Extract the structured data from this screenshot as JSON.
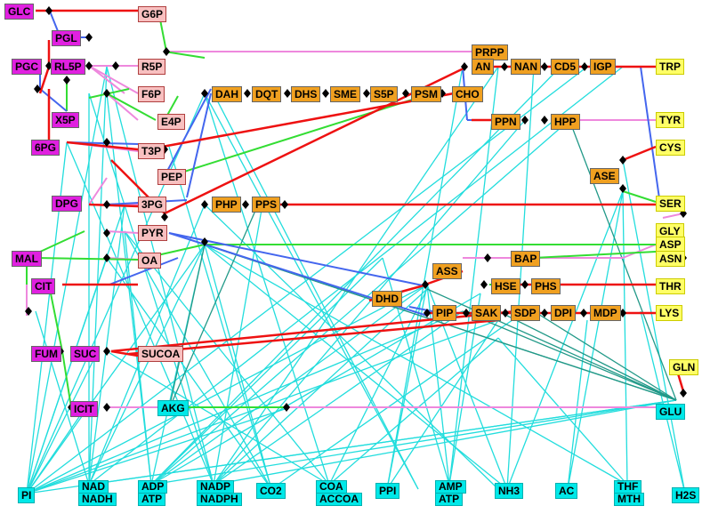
{
  "colors": {
    "magenta": "#e020e0",
    "pink_node": "#f8c0c0",
    "orange": "#f0a020",
    "yellow": "#ffff66",
    "cyan": "#00e8e8",
    "edge_red": "#ee1111",
    "edge_blue": "#4466ee",
    "edge_green": "#33dd33",
    "edge_pink": "#ee88dd",
    "edge_cyan": "#22dddd",
    "edge_teal": "#229988"
  },
  "nodes": {
    "GLC": "GLC",
    "PGL": "PGL",
    "PGC": "PGC",
    "RL5P": "RL5P",
    "X5P": "X5P",
    "PG6": "6PG",
    "DPG": "DPG",
    "MAL": "MAL",
    "CIT": "CIT",
    "FUM": "FUM",
    "SUC": "SUC",
    "ICIT": "ICIT",
    "G6P": "G6P",
    "R5P": "R5P",
    "F6P": "F6P",
    "E4P": "E4P",
    "T3P": "T3P",
    "PEP": "PEP",
    "PG3": "3PG",
    "PYR": "PYR",
    "OA": "OA",
    "SUCOA": "SUCOA",
    "DAH": "DAH",
    "DQT": "DQT",
    "DHS": "DHS",
    "SME": "SME",
    "S5P": "S5P",
    "PSM": "PSM",
    "CHO": "CHO",
    "PRPP": "PRPP",
    "AN": "AN",
    "NAN": "NAN",
    "CD5": "CD5",
    "IGP": "IGP",
    "PPN": "PPN",
    "HPP": "HPP",
    "ASE": "ASE",
    "PHP": "PHP",
    "PPS": "PPS",
    "BAP": "BAP",
    "ASS": "ASS",
    "HSE": "HSE",
    "PHS": "PHS",
    "DHD": "DHD",
    "PIP": "PIP",
    "SAK": "SAK",
    "SDP": "SDP",
    "DPI": "DPI",
    "MDP": "MDP",
    "TRP": "TRP",
    "TYR": "TYR",
    "CYS": "CYS",
    "SER": "SER",
    "GLY": "GLY",
    "ASP": "ASP",
    "ASN": "ASN",
    "THR": "THR",
    "LYS": "LYS",
    "GLN": "GLN",
    "GLU": "GLU",
    "AKG": "AKG",
    "PI": "PI",
    "NAD": "NAD",
    "NADH": "NADH",
    "ADP": "ADP",
    "ATP1": "ATP",
    "NADP": "NADP",
    "NADPH": "NADPH",
    "CO2": "CO2",
    "COA": "COA",
    "ACCOA": "ACCOA",
    "PPI": "PPI",
    "AMP": "AMP",
    "ATP2": "ATP",
    "NH3": "NH3",
    "AC": "AC",
    "THF": "THF",
    "MTH": "MTH",
    "H2S": "H2S"
  }
}
